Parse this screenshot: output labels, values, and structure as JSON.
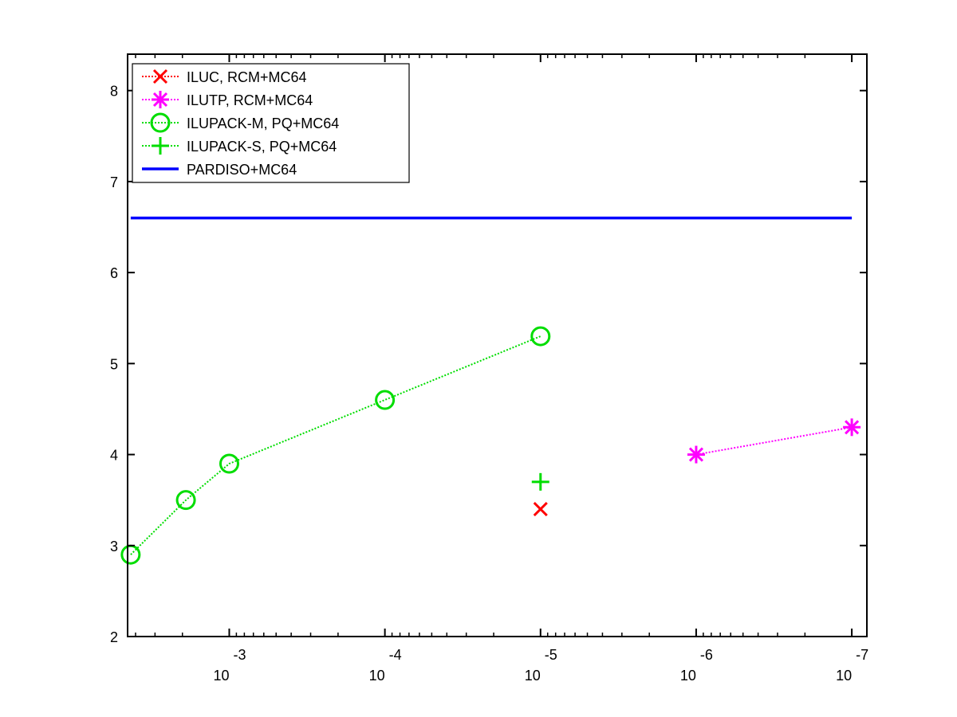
{
  "chart_data": {
    "type": "line",
    "x_scale": "log-decreasing",
    "x_tick_base": "10",
    "xticks": [
      {
        "exponent": "-3",
        "value": 0.001
      },
      {
        "exponent": "-4",
        "value": 0.0001
      },
      {
        "exponent": "-5",
        "value": 1e-05
      },
      {
        "exponent": "-6",
        "value": 1e-06
      },
      {
        "exponent": "-7",
        "value": 1e-07
      }
    ],
    "xlim": [
      0.0045,
      8e-08
    ],
    "ylim": [
      2,
      8.4
    ],
    "yticks": [
      "2",
      "3",
      "4",
      "5",
      "6",
      "7",
      "8"
    ],
    "legend_position": "top-left",
    "grid": false,
    "series": [
      {
        "name": "ILUC, RCM+MC64",
        "color": "#ff0000",
        "marker": "x",
        "line": "dotted",
        "points": [
          {
            "x": 1e-05,
            "y": 3.4
          }
        ]
      },
      {
        "name": "ILUTP, RCM+MC64",
        "color": "#ff00ff",
        "marker": "asterisk",
        "line": "dotted",
        "points": [
          {
            "x": 1e-06,
            "y": 4.0
          },
          {
            "x": 1e-07,
            "y": 4.3
          }
        ]
      },
      {
        "name": "ILUPACK-M, PQ+MC64",
        "color": "#00dd00",
        "marker": "circle",
        "line": "dotted",
        "points": [
          {
            "x": 0.0043,
            "y": 2.9
          },
          {
            "x": 0.0019,
            "y": 3.5
          },
          {
            "x": 0.001,
            "y": 3.9
          },
          {
            "x": 0.0001,
            "y": 4.6
          },
          {
            "x": 1e-05,
            "y": 5.3
          }
        ]
      },
      {
        "name": "ILUPACK-S, PQ+MC64",
        "color": "#00dd00",
        "marker": "plus",
        "line": "dotted",
        "points": [
          {
            "x": 1e-05,
            "y": 3.7
          }
        ]
      },
      {
        "name": "PARDISO+MC64",
        "color": "#0000ff",
        "marker": "none",
        "line": "solid",
        "points": [
          {
            "x": 0.0043,
            "y": 6.6
          },
          {
            "x": 1e-07,
            "y": 6.6
          }
        ]
      }
    ]
  }
}
